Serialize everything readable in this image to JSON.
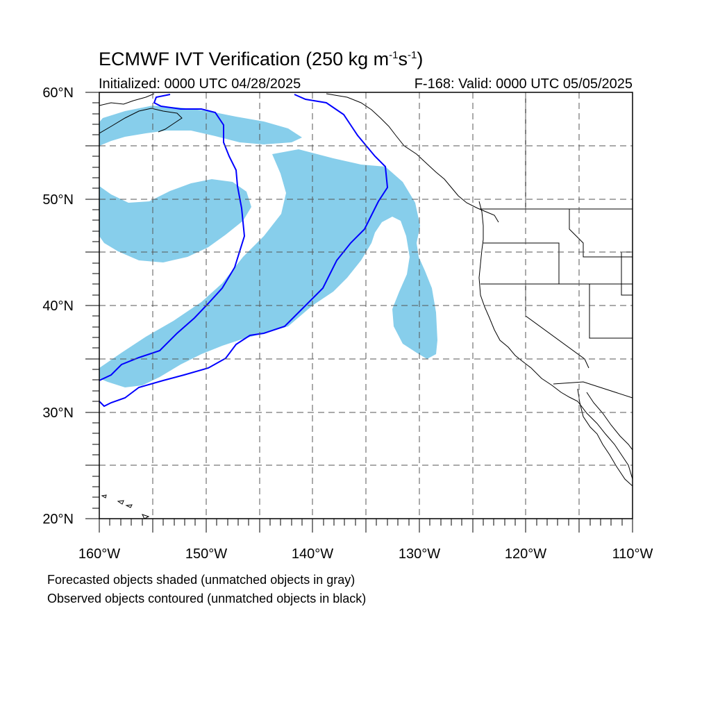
{
  "title": {
    "main": "ECMWF IVT Verification (250 kg m",
    "sup1": "-1",
    "mid": "s",
    "sup2": "-1",
    "end": ")"
  },
  "subtitle_left": "Initialized: 0000 UTC 04/28/2025",
  "subtitle_right": "F-168: Valid: 0000 UTC 05/05/2025",
  "notes": [
    "Forecasted objects shaded (unmatched objects in gray)",
    "Observed objects contoured (unmatched objects in black)"
  ],
  "map": {
    "lon_range": [
      -160,
      -110
    ],
    "lat_range": [
      20,
      60
    ],
    "lat_labels": [
      "60°N",
      "50°N",
      "40°N",
      "30°N",
      "20°N"
    ],
    "lon_labels": [
      "160°W",
      "150°W",
      "140°W",
      "130°W",
      "120°W",
      "110°W"
    ],
    "colors": {
      "forecast_fill": "#87ceeb",
      "observed_contour": "#0000ff",
      "coastline": "#000000",
      "grid": "#555555"
    }
  }
}
